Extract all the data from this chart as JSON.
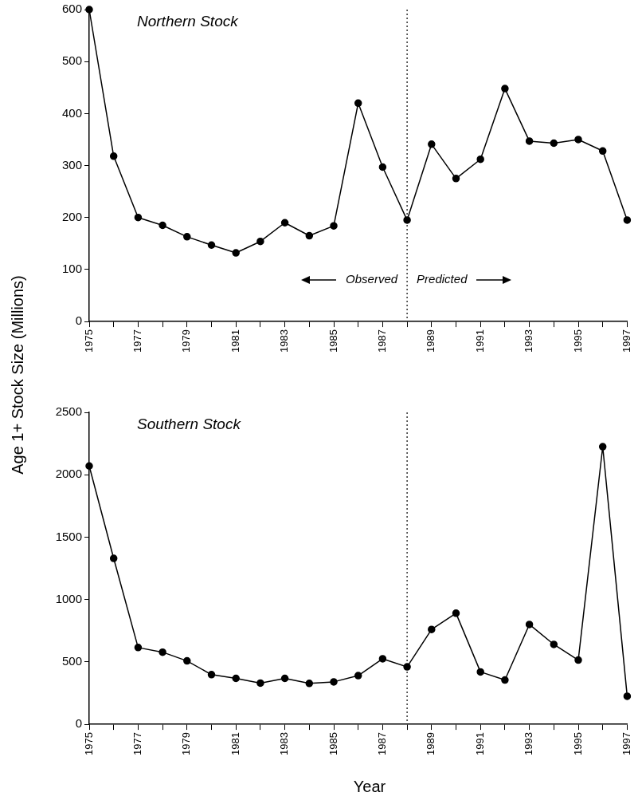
{
  "chart_data": [
    {
      "type": "line",
      "title": "Northern Stock",
      "ylabel": "Age 1+ Stock Size (Millions)",
      "x": [
        1975,
        1976,
        1977,
        1978,
        1979,
        1980,
        1981,
        1982,
        1983,
        1984,
        1985,
        1986,
        1987,
        1988,
        1989,
        1990,
        1991,
        1992,
        1993,
        1994,
        1995,
        1996,
        1997
      ],
      "series": [
        {
          "color": "#000000",
          "values": [
            600,
            318,
            200,
            185,
            163,
            147,
            132,
            154,
            190,
            165,
            184,
            420,
            297,
            195,
            341,
            275,
            312,
            448,
            347,
            343,
            350,
            328,
            195
          ]
        }
      ],
      "xlim": [
        1975,
        1997
      ],
      "xticks": [
        1975,
        {
          "value": 1976,
          "label": null
        },
        1977,
        {
          "value": 1978,
          "label": null
        },
        1979,
        {
          "value": 1980,
          "label": null
        },
        1981,
        {
          "value": 1982,
          "label": null
        },
        1983,
        {
          "value": 1984,
          "label": null
        },
        1985,
        {
          "value": 1986,
          "label": null
        },
        1987,
        {
          "value": 1988,
          "label": null
        },
        1989,
        {
          "value": 1990,
          "label": null
        },
        1991,
        {
          "value": 1992,
          "label": null
        },
        1993,
        {
          "value": 1994,
          "label": null
        },
        1995,
        {
          "value": 1996,
          "label": null
        },
        1997
      ],
      "ylim": [
        0,
        600
      ],
      "yticks": [
        0,
        100,
        200,
        300,
        400,
        500,
        600
      ],
      "ref_lines": [
        {
          "axis": "x",
          "value": 1988,
          "line_style": "dotted",
          "color": "#000000"
        }
      ],
      "annotations": [
        "Observed",
        "Predicted"
      ],
      "marker": "circle",
      "line_style": "solid",
      "legend": false,
      "grid": false
    },
    {
      "type": "line",
      "title": "Southern Stock",
      "xlabel": "Year",
      "x": [
        1975,
        1976,
        1977,
        1978,
        1979,
        1980,
        1981,
        1982,
        1983,
        1984,
        1985,
        1986,
        1987,
        1988,
        1989,
        1990,
        1991,
        1992,
        1993,
        1994,
        1995,
        1996,
        1997
      ],
      "series": [
        {
          "color": "#000000",
          "values": [
            2070,
            1330,
            615,
            578,
            508,
            398,
            368,
            330,
            368,
            328,
            340,
            390,
            525,
            460,
            760,
            890,
            420,
            355,
            800,
            640,
            515,
            2225,
            225
          ]
        }
      ],
      "xlim": [
        1975,
        1997
      ],
      "xticks": [
        1975,
        {
          "value": 1976,
          "label": null
        },
        1977,
        {
          "value": 1978,
          "label": null
        },
        1979,
        {
          "value": 1980,
          "label": null
        },
        1981,
        {
          "value": 1982,
          "label": null
        },
        1983,
        {
          "value": 1984,
          "label": null
        },
        1985,
        {
          "value": 1986,
          "label": null
        },
        1987,
        {
          "value": 1988,
          "label": null
        },
        1989,
        {
          "value": 1990,
          "label": null
        },
        1991,
        {
          "value": 1992,
          "label": null
        },
        1993,
        {
          "value": 1994,
          "label": null
        },
        1995,
        {
          "value": 1996,
          "label": null
        },
        1997
      ],
      "ylim": [
        0,
        2500
      ],
      "yticks": [
        0,
        500,
        1000,
        1500,
        2000,
        2500
      ],
      "ref_lines": [
        {
          "axis": "x",
          "value": 1988,
          "line_style": "dotted",
          "color": "#000000"
        }
      ],
      "marker": "circle",
      "line_style": "solid",
      "legend": false,
      "grid": false
    }
  ]
}
